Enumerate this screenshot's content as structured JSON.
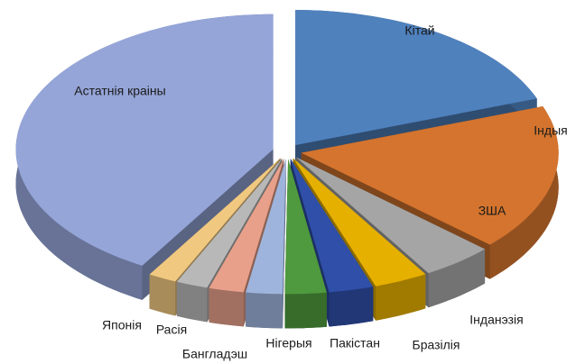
{
  "chart_data": {
    "type": "pie",
    "categories": [
      "Кітай",
      "Індыя",
      "ЗША",
      "Інданэзія",
      "Бразілія",
      "Пакістан",
      "Нігерыя",
      "Бангладэш",
      "Расія",
      "Японія",
      "Астатнія краіны"
    ],
    "values": [
      19.4,
      17.5,
      4.5,
      3.4,
      2.8,
      2.6,
      2.3,
      2.2,
      2.0,
      1.8,
      41.5
    ],
    "colors": [
      "#4f81bd",
      "#d4742e",
      "#a5a5a5",
      "#e6b000",
      "#2f4fa8",
      "#4f9a3e",
      "#9fb4dc",
      "#e8a08a",
      "#b8b8b8",
      "#f0c880",
      "#95a5d8"
    ]
  }
}
